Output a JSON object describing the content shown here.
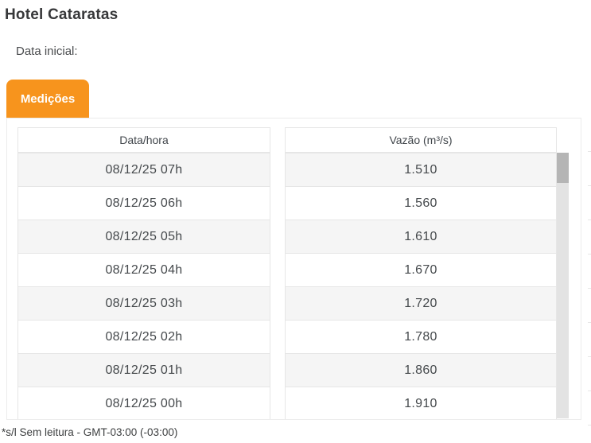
{
  "page": {
    "title": "Hotel Cataratas",
    "date_initial_label": "Data inicial:",
    "footer_note": "*s/l Sem leitura - GMT-03:00 (-03:00)"
  },
  "tabs": {
    "active_label": "Medições"
  },
  "table": {
    "columns": [
      "Data/hora",
      "Vazão (m³/s)"
    ],
    "rows": [
      {
        "datetime": "08/12/25 07h",
        "flow": "1.510"
      },
      {
        "datetime": "08/12/25 06h",
        "flow": "1.560"
      },
      {
        "datetime": "08/12/25 05h",
        "flow": "1.610"
      },
      {
        "datetime": "08/12/25 04h",
        "flow": "1.670"
      },
      {
        "datetime": "08/12/25 03h",
        "flow": "1.720"
      },
      {
        "datetime": "08/12/25 02h",
        "flow": "1.780"
      },
      {
        "datetime": "08/12/25 01h",
        "flow": "1.860"
      },
      {
        "datetime": "08/12/25 00h",
        "flow": "1.910"
      }
    ]
  },
  "scrollbar": {
    "position": "top"
  },
  "colors": {
    "accent_orange": "#F7941D",
    "row_alt_background": "#f5f5f5",
    "scrollbar_thumb": "#b5b5b5",
    "scrollbar_track": "#e3e3e3"
  }
}
